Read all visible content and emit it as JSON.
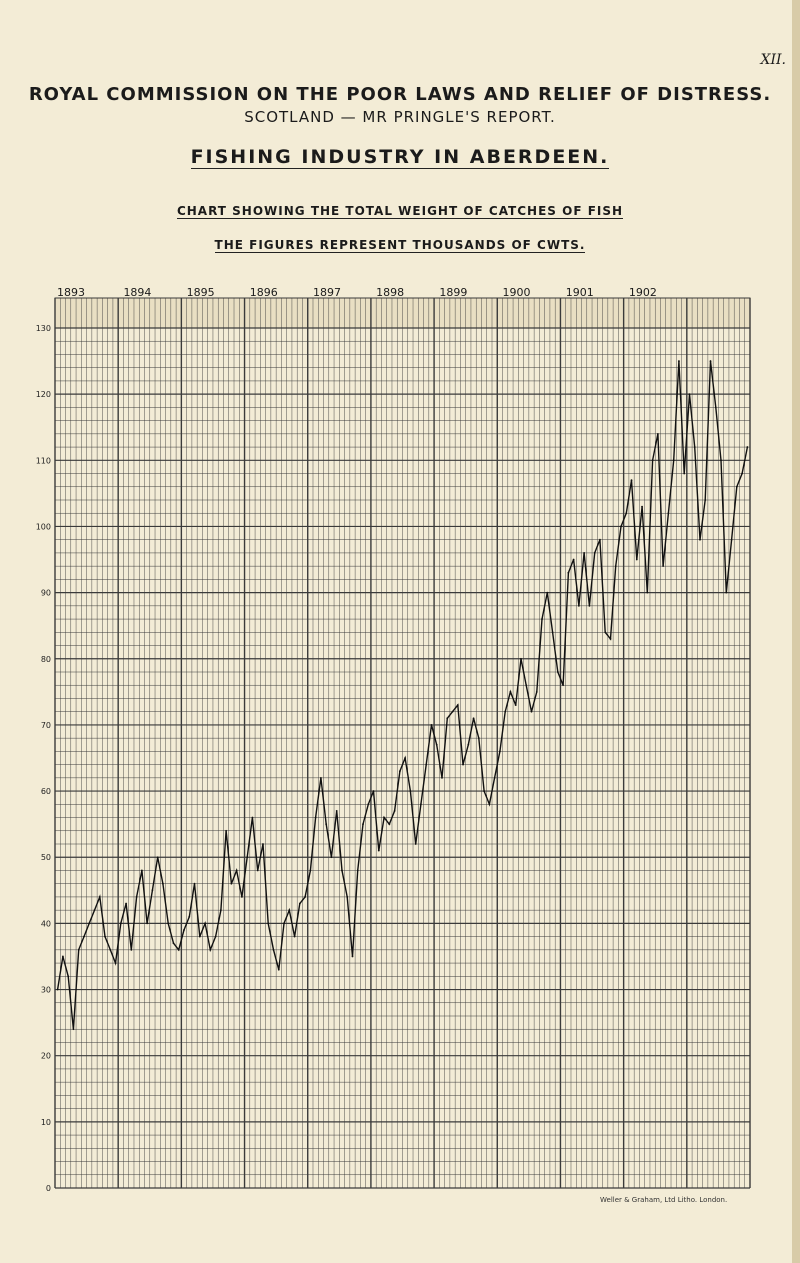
{
  "plate": "XII.",
  "title1": "ROYAL COMMISSION ON THE POOR LAWS AND RELIEF OF DISTRESS.",
  "title2": "SCOTLAND — MR PRINGLE'S REPORT.",
  "title3": "FISHING INDUSTRY IN ABERDEEN.",
  "title4": "CHART SHOWING THE TOTAL WEIGHT OF CATCHES OF FISH",
  "title5": "THE FIGURES REPRESENT THOUSANDS OF CWTS.",
  "credit": "Weller & Graham, Ltd Litho. London.",
  "colors": {
    "paper": "#f3ecd6",
    "grid": "#3a3a3a",
    "line": "#111111"
  },
  "chart_data": {
    "type": "line",
    "x_labels": [
      "1893",
      "1894",
      "1895",
      "1896",
      "1897",
      "1898",
      "1899",
      "1900",
      "1901",
      "1902"
    ],
    "y_ticks": [
      "0",
      "10",
      "20",
      "30",
      "40",
      "50",
      "60",
      "70",
      "80",
      "90",
      "100",
      "110",
      "120",
      "130"
    ],
    "ylim": [
      0,
      130
    ],
    "grid": true,
    "monthly_values": [
      30,
      35,
      32,
      24,
      36,
      38,
      40,
      42,
      44,
      38,
      36,
      34,
      40,
      43,
      36,
      44,
      48,
      40,
      45,
      50,
      46,
      40,
      37,
      36,
      39,
      41,
      46,
      38,
      40,
      36,
      38,
      42,
      54,
      46,
      48,
      44,
      50,
      56,
      48,
      52,
      40,
      36,
      33,
      40,
      42,
      38,
      43,
      44,
      48,
      56,
      62,
      55,
      50,
      57,
      48,
      44,
      35,
      48,
      55,
      58,
      60,
      51,
      56,
      55,
      57,
      63,
      65,
      60,
      52,
      58,
      64,
      70,
      67,
      62,
      71,
      72,
      73,
      64,
      67,
      71,
      68,
      60,
      58,
      62,
      66,
      72,
      75,
      73,
      80,
      76,
      72,
      75,
      86,
      90,
      84,
      78,
      76,
      93,
      95,
      88,
      96,
      88,
      96,
      98,
      84,
      83,
      94,
      100,
      102,
      107,
      95,
      103,
      90,
      110,
      114,
      94,
      102,
      110,
      125,
      108,
      120,
      112,
      98,
      104,
      125,
      118,
      110,
      90,
      98,
      106,
      108,
      112
    ]
  }
}
